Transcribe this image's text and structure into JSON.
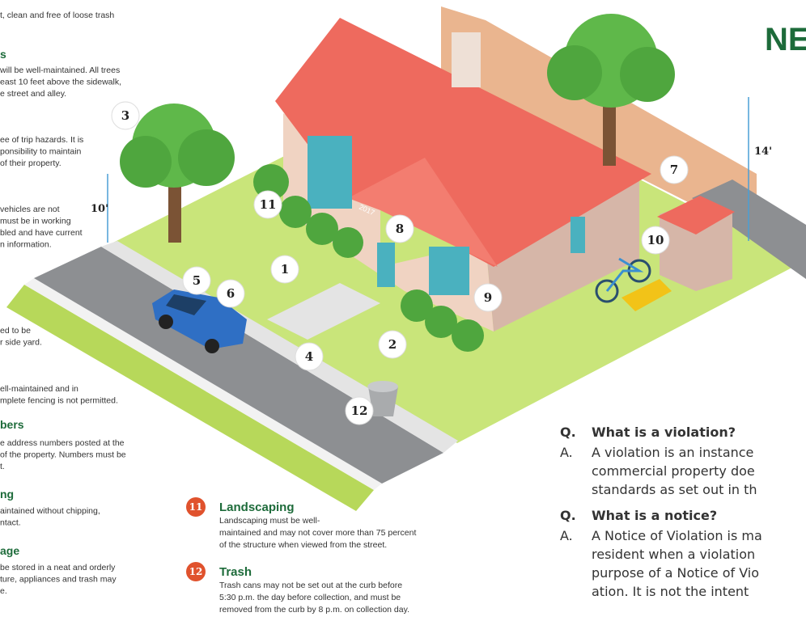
{
  "title": "NE",
  "left_items": [
    {
      "lines": [
        "t, clean and free of loose trash"
      ]
    },
    {
      "heading": "s",
      "lines": [
        "will be well-maintained. All trees",
        "east 10 feet above the sidewalk,",
        "e street and alley."
      ]
    },
    {
      "lines": [
        "ee of trip hazards. It is",
        "ponsibility to maintain",
        "of their property."
      ]
    },
    {
      "lines": [
        "vehicles are not",
        "must be in working",
        "bled and have current",
        "n information."
      ]
    },
    {
      "lines": [
        "ed to be",
        "r side yard."
      ]
    },
    {
      "lines": [
        "ell-maintained and in",
        "mplete fencing is not permitted."
      ]
    },
    {
      "heading": "bers",
      "lines": [
        "e address numbers posted at the",
        "of the property. Numbers must be",
        "t."
      ]
    },
    {
      "heading": "ng",
      "lines": [
        "aintained without chipping,",
        "ntact."
      ]
    },
    {
      "heading": "age",
      "lines": [
        "be stored in a neat and orderly",
        "ture, appliances and trash may",
        "e."
      ]
    }
  ],
  "bottom_items": [
    {
      "number": "11",
      "heading": "Landscaping",
      "lines": [
        "Landscaping must be well-",
        "maintained and may not cover more than 75 percent",
        "of the structure when viewed from the street."
      ]
    },
    {
      "number": "12",
      "heading": "Trash",
      "lines": [
        "Trash cans may not be set out at the curb before",
        "5:30 p.m. the day before collection, and must be",
        "removed from the curb by 8 p.m. on collection day."
      ]
    }
  ],
  "illustration": {
    "badges": [
      "1",
      "2",
      "3",
      "4",
      "5",
      "6",
      "7",
      "8",
      "9",
      "10",
      "11",
      "12"
    ],
    "measures": [
      "10'",
      "14'"
    ],
    "house_number": "2017"
  },
  "faq": [
    {
      "q_marker": "Q.",
      "question": "What is a violation?",
      "a_marker": "A.",
      "answer_lines": [
        "A violation is an instance",
        "commercial property doe",
        "standards as set out in th"
      ]
    },
    {
      "q_marker": "Q.",
      "question": "What is a notice?",
      "a_marker": "A.",
      "answer_lines": [
        "A Notice of Violation is ma",
        "resident when a violation",
        "purpose of a Notice of Vio",
        "ation. It is not the intent"
      ]
    }
  ]
}
